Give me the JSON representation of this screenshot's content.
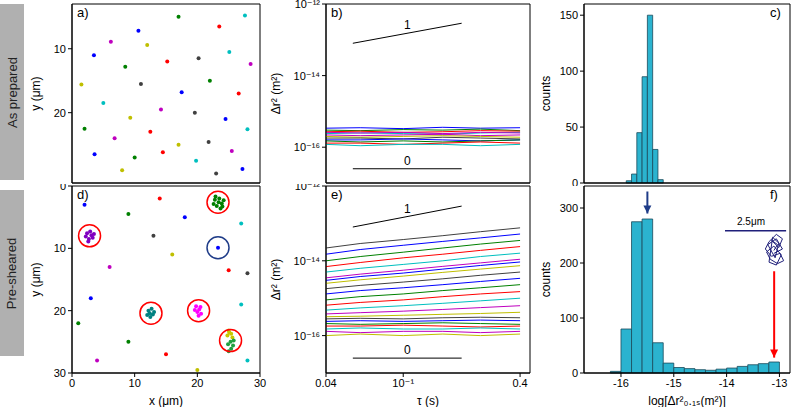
{
  "rows": [
    "As prepared",
    "Pre-sheared"
  ],
  "chart_data": [
    {
      "type": "scatter",
      "title": "a)",
      "y_label": "y (μm)",
      "tick_labels": "y",
      "xlim": [
        0,
        30
      ],
      "xticks": [
        0,
        10,
        20,
        30
      ],
      "ylim": [
        3,
        31
      ],
      "yticks": [
        10,
        20
      ],
      "x": [
        10.6,
        17.0,
        23.5,
        27.6,
        6.2,
        12.0,
        20.2,
        3.5,
        8.5,
        15.2,
        25.1,
        28.5,
        1.5,
        11.0,
        17.5,
        22.0,
        26.6,
        5.0,
        14.2,
        9.3,
        19.6,
        24.5,
        2.0,
        12.5,
        28.0,
        6.8,
        17.0,
        21.8,
        3.6,
        10.0,
        14.5,
        19.8,
        25.5,
        8.0,
        23.0,
        27.2
      ],
      "y": [
        7.2,
        5.0,
        6.5,
        4.8,
        8.9,
        9.4,
        11.5,
        11.0,
        12.8,
        12.0,
        10.5,
        12.4,
        15.6,
        15.5,
        16.8,
        15.0,
        17.0,
        18.5,
        19.5,
        20.8,
        20.0,
        21.0,
        22.5,
        23.0,
        22.6,
        24.0,
        25.0,
        24.6,
        26.5,
        27.0,
        26.2,
        27.5,
        26.0,
        29.0,
        29.5,
        28.8
      ],
      "colors": [
        "#0000ff",
        "#008000",
        "#ff0000",
        "#00bfbf",
        "#bf00bf",
        "#bfbf00",
        "#404040",
        "#0000ff",
        "#008000",
        "#ff0000",
        "#00bfbf",
        "#bf00bf",
        "#bfbf00",
        "#404040",
        "#0000ff",
        "#008000",
        "#ff0000",
        "#00bfbf",
        "#bf00bf",
        "#bfbf00",
        "#404040",
        "#0000ff",
        "#008000",
        "#ff0000",
        "#00bfbf",
        "#bf00bf",
        "#bfbf00",
        "#404040",
        "#0000ff",
        "#008000",
        "#ff0000",
        "#00bfbf",
        "#bf00bf",
        "#bfbf00",
        "#404040",
        "#0000ff"
      ]
    },
    {
      "type": "line",
      "title": "b)",
      "y_label": "Δr² (m²)",
      "log": true,
      "tick_labels": "y",
      "xlim": [
        0.04,
        0.45
      ],
      "xticks": [
        0.04,
        {
          "value": 0.1,
          "label": "10⁻¹"
        },
        0.4
      ],
      "ylim": [
        1e-17,
        1e-12
      ],
      "yticks": [
        {
          "value": 1e-16,
          "label": "10⁻¹⁶"
        },
        {
          "value": 1e-14,
          "label": "10⁻¹⁴"
        },
        {
          "value": 1e-12,
          "label": "10⁻¹²"
        }
      ],
      "x": [
        0.04,
        0.06,
        0.1,
        0.16,
        0.25,
        0.4
      ],
      "series": [
        {
          "color": "#0000ff",
          "values": [
            3.4e-16,
            3.5e-16,
            3.3e-16,
            3.6e-16,
            3.4e-16,
            3.5e-16
          ]
        },
        {
          "color": "#008000",
          "values": [
            3e-16,
            2.9e-16,
            3.1e-16,
            3e-16,
            3.2e-16,
            2.9e-16
          ]
        },
        {
          "color": "#ff0000",
          "values": [
            2.7e-16,
            2.8e-16,
            2.6e-16,
            2.7e-16,
            2.9e-16,
            2.8e-16
          ]
        },
        {
          "color": "#00bfbf",
          "values": [
            2.4e-16,
            2.5e-16,
            2.4e-16,
            2.3e-16,
            2.5e-16,
            2.6e-16
          ]
        },
        {
          "color": "#bf00bf",
          "values": [
            2.2e-16,
            2.1e-16,
            2.2e-16,
            2.3e-16,
            2.1e-16,
            2.2e-16
          ]
        },
        {
          "color": "#bfbf00",
          "values": [
            2e-16,
            1.9e-16,
            2e-16,
            2.1e-16,
            2e-16,
            1.9e-16
          ]
        },
        {
          "color": "#404040",
          "values": [
            1.8e-16,
            1.8e-16,
            1.7e-16,
            1.9e-16,
            1.8e-16,
            1.7e-16
          ]
        },
        {
          "color": "#0000ff",
          "values": [
            1.6e-16,
            1.6e-16,
            1.7e-16,
            1.6e-16,
            1.5e-16,
            1.6e-16
          ]
        },
        {
          "color": "#008000",
          "values": [
            1.5e-16,
            1.4e-16,
            1.5e-16,
            1.4e-16,
            1.5e-16,
            1.6e-16
          ]
        },
        {
          "color": "#ff0000",
          "values": [
            1.3e-16,
            1.3e-16,
            1.2e-16,
            1.3e-16,
            1.4e-16,
            1.3e-16
          ]
        },
        {
          "color": "#00bfbf",
          "values": [
            1.2e-16,
            1.1e-16,
            1.2e-16,
            1.2e-16,
            1.1e-16,
            1.2e-16
          ]
        },
        {
          "color": "#bf00bf",
          "values": [
            2.6e-16,
            2.5e-16,
            2.6e-16,
            2.4e-16,
            2.6e-16,
            2.5e-16
          ]
        }
      ],
      "guides": [
        {
          "text": "1",
          "x": [
            0.055,
            0.2
          ],
          "y": [
            8e-14,
            2.9e-13
          ]
        },
        {
          "text": "0",
          "x": [
            0.055,
            0.2
          ],
          "y": [
            2.5e-17,
            2.5e-17
          ]
        }
      ]
    },
    {
      "type": "histogram",
      "title": "c)",
      "y_label": "counts",
      "tick_labels": "y",
      "color": "#2bb3cf",
      "xlim": [
        -16.7,
        -12.8
      ],
      "xticks": [
        -16,
        -15,
        -14,
        -13
      ],
      "ylim": [
        0,
        160
      ],
      "yticks": [
        0,
        50,
        100,
        150
      ],
      "bins": [
        -15.9,
        -15.8,
        -15.7,
        -15.6,
        -15.5,
        -15.4,
        -15.3,
        -15.2
      ],
      "counts": [
        2,
        8,
        45,
        95,
        150,
        30,
        3
      ]
    },
    {
      "type": "scatter",
      "title": "d)",
      "x_label": "x (μm)",
      "y_label": "y (μm)",
      "xlim": [
        0,
        30
      ],
      "xticks": [
        0,
        10,
        20,
        30
      ],
      "ylim": [
        0,
        30
      ],
      "yticks": [
        0,
        10,
        20,
        30
      ],
      "x": [
        2,
        9,
        14,
        27,
        6,
        16,
        28,
        3,
        9,
        15,
        27,
        4,
        20,
        13,
        18,
        1,
        25,
        28,
        22.8,
        23.5,
        23.9,
        23.1,
        22.6,
        23.7,
        24.2,
        22.9,
        23.4,
        24.0,
        2.4,
        3.1,
        2.7,
        3.3,
        2.2,
        2.9,
        3.5,
        2.6,
        23.3,
        12.2,
        12.9,
        12.5,
        13.1,
        12.0,
        12.7,
        12.4,
        19.8,
        20.3,
        20.6,
        20.0,
        19.6,
        20.5,
        20.2,
        25.0,
        25.4,
        24.8,
        25.6,
        25.1,
        25.3,
        25.7,
        24.9,
        25.4,
        25.8,
        25.0
      ],
      "y": [
        3,
        4.5,
        2,
        6,
        13,
        11,
        14,
        18,
        25,
        27,
        19,
        28,
        29.5,
        8,
        5,
        22,
        13.5,
        28,
        2.2,
        2.0,
        2.8,
        3.2,
        2.9,
        3.6,
        2.3,
        1.7,
        2.6,
        3.3,
        7.6,
        7.9,
        8.5,
        8.3,
        8.1,
        7.3,
        7.7,
        8.9,
        9.9,
        20.0,
        20.6,
        21.0,
        20.2,
        20.7,
        19.7,
        20.4,
        19.3,
        19.8,
        20.5,
        20.2,
        19.9,
        19.4,
        20.8,
        23.2,
        23.7,
        24.0,
        24.3,
        23.5,
        25.0,
        25.6,
        25.4,
        26.1,
        24.8,
        26.5
      ],
      "colors": [
        "#0000ff",
        "#008000",
        "#ff0000",
        "#00bfbf",
        "#bf00bf",
        "#bfbf00",
        "#404040",
        "#0000ff",
        "#008000",
        "#ff0000",
        "#00bfbf",
        "#bf00bf",
        "#bfbf00",
        "#404040",
        "#0000ff",
        "#008000",
        "#ff0000",
        "#00bfbf",
        "#008000",
        "#008000",
        "#008000",
        "#008000",
        "#008000",
        "#008000",
        "#008000",
        "#008000",
        "#008000",
        "#008000",
        "#8000c0",
        "#8000c0",
        "#8000c0",
        "#8000c0",
        "#8000c0",
        "#8000c0",
        "#8000c0",
        "#8000c0",
        "#0000ff",
        "#008080",
        "#008080",
        "#008080",
        "#008080",
        "#008080",
        "#008080",
        "#008080",
        "#ff00ff",
        "#ff00ff",
        "#ff00ff",
        "#ff00ff",
        "#ff00ff",
        "#ff00ff",
        "#ff00ff",
        "#c8c800",
        "#c8c800",
        "#c8c800",
        "#c8c800",
        "#c8c800",
        "#20a040",
        "#20a040",
        "#20a040",
        "#20a040",
        "#20a040",
        "#20a040"
      ],
      "circles": [
        {
          "x": 23.3,
          "y": 2.6,
          "color": "#ff0000"
        },
        {
          "x": 2.8,
          "y": 8.0,
          "color": "#ff0000"
        },
        {
          "x": 23.3,
          "y": 9.9,
          "color": "#1f3c88"
        },
        {
          "x": 12.6,
          "y": 20.4,
          "color": "#ff0000"
        },
        {
          "x": 20.2,
          "y": 20.0,
          "color": "#ff0000"
        },
        {
          "x": 25.3,
          "y": 24.8,
          "color": "#ff0000"
        }
      ]
    },
    {
      "type": "line",
      "title": "e)",
      "x_label": "τ (s)",
      "y_label": "Δr² (m²)",
      "log": true,
      "xlim": [
        0.04,
        0.45
      ],
      "xticks": [
        0.04,
        {
          "value": 0.1,
          "label": "10⁻¹"
        },
        0.4
      ],
      "ylim": [
        1e-17,
        1e-12
      ],
      "yticks": [
        {
          "value": 1e-16,
          "label": "10⁻¹⁶"
        },
        {
          "value": 1e-14,
          "label": "10⁻¹⁴"
        },
        {
          "value": 1e-12,
          "label": "10⁻¹²"
        }
      ],
      "x": [
        0.04,
        0.06,
        0.1,
        0.16,
        0.25,
        0.4
      ],
      "series": [
        {
          "color": "#0000ff",
          "values": [
            1.5e-14,
            2e-14,
            2.6e-14,
            3.3e-14,
            4.1e-14,
            5.2e-14
          ]
        },
        {
          "color": "#008000",
          "values": [
            1e-14,
            1.3e-14,
            1.7e-14,
            2.2e-14,
            2.8e-14,
            3.5e-14
          ]
        },
        {
          "color": "#ff0000",
          "values": [
            7e-15,
            9e-15,
            1.2e-14,
            1.5e-14,
            1.9e-14,
            2.4e-14
          ]
        },
        {
          "color": "#00bfbf",
          "values": [
            5e-15,
            6.3e-15,
            8e-15,
            1e-14,
            1.3e-14,
            1.6e-14
          ]
        },
        {
          "color": "#bf00bf",
          "values": [
            3.5e-15,
            4.4e-15,
            5.6e-15,
            7.1e-15,
            8.8e-15,
            1.1e-14
          ]
        },
        {
          "color": "#bfbf00",
          "values": [
            2.5e-15,
            3.1e-15,
            3.9e-15,
            4.9e-15,
            6e-15,
            7.4e-15
          ]
        },
        {
          "color": "#404040",
          "values": [
            1.8e-15,
            2.2e-15,
            2.7e-15,
            3.3e-15,
            4.1e-15,
            5e-15
          ]
        },
        {
          "color": "#0000ff",
          "values": [
            1.3e-15,
            1.6e-15,
            1.9e-15,
            2.3e-15,
            2.8e-15,
            3.4e-15
          ]
        },
        {
          "color": "#008000",
          "values": [
            9e-16,
            1.1e-15,
            1.3e-15,
            1.6e-15,
            1.9e-15,
            2.3e-15
          ]
        },
        {
          "color": "#ff0000",
          "values": [
            6.5e-16,
            7.7e-16,
            9e-16,
            1.1e-15,
            1.3e-15,
            1.5e-15
          ]
        },
        {
          "color": "#00bfbf",
          "values": [
            4.8e-16,
            5.5e-16,
            6.3e-16,
            7.3e-16,
            8.5e-16,
            1e-15
          ]
        },
        {
          "color": "#bf00bf",
          "values": [
            3.8e-16,
            4.1e-16,
            4.5e-16,
            5e-16,
            5.6e-16,
            6.3e-16
          ]
        },
        {
          "color": "#bfbf00",
          "values": [
            3.2e-16,
            3.3e-16,
            3.5e-16,
            3.7e-16,
            3.9e-16,
            4.2e-16
          ]
        },
        {
          "color": "#404040",
          "values": [
            2.8e-16,
            2.9e-16,
            2.8e-16,
            3e-16,
            3.1e-16,
            3e-16
          ]
        },
        {
          "color": "#0000ff",
          "values": [
            2.4e-16,
            2.5e-16,
            2.4e-16,
            2.5e-16,
            2.6e-16,
            2.5e-16
          ]
        },
        {
          "color": "#008000",
          "values": [
            2.1e-16,
            2e-16,
            2.1e-16,
            2.2e-16,
            2.1e-16,
            2e-16
          ]
        },
        {
          "color": "#ff0000",
          "values": [
            1.8e-16,
            1.8e-16,
            1.9e-16,
            1.8e-16,
            1.7e-16,
            1.8e-16
          ]
        },
        {
          "color": "#00bfbf",
          "values": [
            1.5e-16,
            1.6e-16,
            1.5e-16,
            1.5e-16,
            1.6e-16,
            1.5e-16
          ]
        },
        {
          "color": "#bf00bf",
          "values": [
            1.3e-16,
            1.2e-16,
            1.3e-16,
            1.3e-16,
            1.2e-16,
            1.3e-16
          ]
        },
        {
          "color": "#bfbf00",
          "values": [
            1e-16,
            1.1e-16,
            1e-16,
            1.1e-16,
            1e-16,
            1.1e-16
          ]
        },
        {
          "color": "#404040",
          "values": [
            2.2e-14,
            2.9e-14,
            3.7e-14,
            4.7e-14,
            6e-14,
            7.6e-14
          ]
        },
        {
          "color": "#0000ff",
          "values": [
            3e-15,
            3.8e-15,
            4.7e-15,
            6e-15,
            7.5e-15,
            9.3e-15
          ]
        }
      ],
      "guides": [
        {
          "text": "1",
          "x": [
            0.055,
            0.2
          ],
          "y": [
            8e-14,
            2.9e-13
          ]
        },
        {
          "text": "0",
          "x": [
            0.055,
            0.2
          ],
          "y": [
            2.5e-17,
            2.5e-17
          ]
        }
      ]
    },
    {
      "type": "histogram",
      "title": "f)",
      "x_label": "log[Δr²₀.₁ₛ(m²)]",
      "y_label": "counts",
      "color": "#2bb3cf",
      "xlim": [
        -16.7,
        -12.8
      ],
      "xticks": [
        -16,
        -15,
        -14,
        -13
      ],
      "ylim": [
        0,
        340
      ],
      "yticks": [
        0,
        100,
        200,
        300
      ],
      "bins": [
        -16.2,
        -16.0,
        -15.8,
        -15.6,
        -15.4,
        -15.2,
        -15.0,
        -14.8,
        -14.6,
        -14.4,
        -14.2,
        -14.0,
        -13.8,
        -13.6,
        -13.4,
        -13.2,
        -13.0
      ],
      "counts": [
        3,
        80,
        275,
        280,
        55,
        18,
        10,
        8,
        6,
        5,
        7,
        9,
        12,
        15,
        17,
        20
      ],
      "arrows": [
        {
          "x": -15.5,
          "from": 330,
          "to": 290,
          "color": "#1f3c88"
        },
        {
          "x": -13.1,
          "from": 185,
          "to": 28,
          "color": "#ff0000"
        }
      ],
      "inset": {
        "scale_bar": 2.5,
        "scale_label": "2.5μm",
        "color": "#1f1f7a",
        "xlim": [
          0.2,
          2.9
        ],
        "ylim": [
          0.3,
          1.6
        ],
        "x": [
          2.2,
          2.35,
          2.1,
          2.4,
          2.55,
          2.3,
          2.0,
          1.85,
          2.1,
          2.45,
          2.6,
          2.35,
          2.05,
          1.9,
          2.2,
          2.5,
          2.3,
          2.0,
          2.15,
          2.4,
          2.25,
          1.95,
          2.3,
          2.55,
          2.2
        ],
        "y": [
          0.9,
          1.1,
          1.25,
          1.0,
          1.3,
          1.45,
          1.2,
          0.95,
          0.7,
          0.8,
          0.55,
          0.45,
          0.6,
          0.85,
          1.05,
          0.75,
          0.4,
          0.5,
          1.35,
          1.15,
          0.65,
          1.1,
          1.3,
          0.95,
          0.8
        ]
      }
    }
  ]
}
